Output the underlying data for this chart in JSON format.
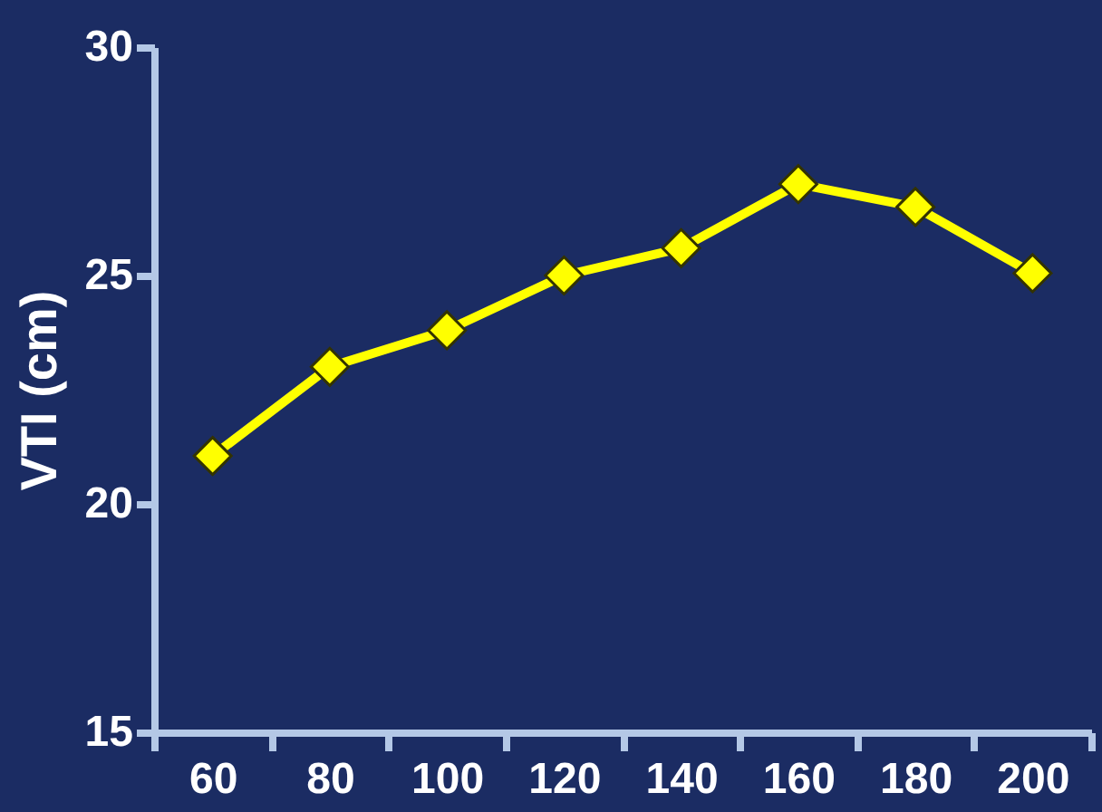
{
  "chart_data": {
    "type": "line",
    "ylabel": "VTI (cm)",
    "categories": [
      "60",
      "80",
      "100",
      "120",
      "140",
      "160",
      "180",
      "200"
    ],
    "series": [
      {
        "color": "#ffff00",
        "values": [
          21.05,
          23.0,
          23.8,
          25.0,
          25.6,
          27.0,
          26.5,
          25.05
        ]
      }
    ],
    "ylim": [
      15,
      30
    ],
    "yticks": [
      15,
      20,
      25,
      30
    ],
    "grid": false,
    "marker": "diamond",
    "line_style": "solid"
  }
}
